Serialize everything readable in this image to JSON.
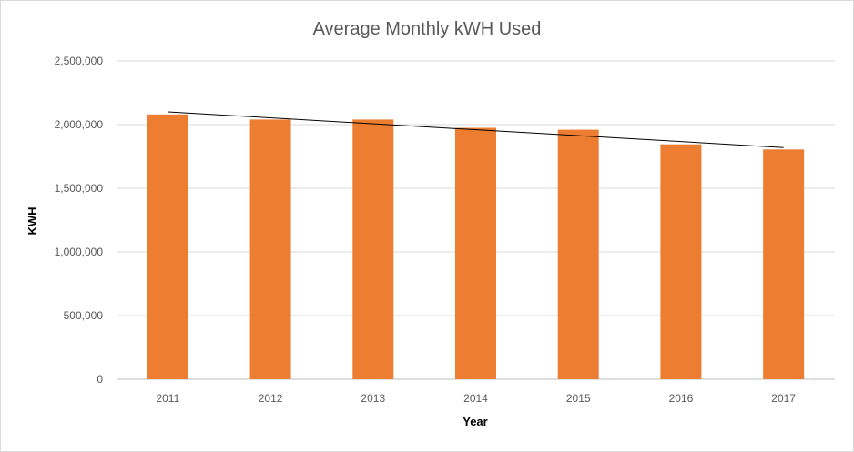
{
  "chart_data": {
    "type": "bar",
    "title": "Average Monthly kWH Used",
    "xlabel": "Year",
    "ylabel": "KWH",
    "categories": [
      "2011",
      "2012",
      "2013",
      "2014",
      "2015",
      "2016",
      "2017"
    ],
    "values": [
      2080000,
      2040000,
      2040000,
      1975000,
      1960000,
      1845000,
      1805000
    ],
    "ylim": [
      0,
      2500000
    ],
    "yticks": [
      0,
      500000,
      1000000,
      1500000,
      2000000,
      2500000
    ],
    "ytick_labels": [
      "0",
      "500,000",
      "1,000,000",
      "1,500,000",
      "2,000,000",
      "2,500,000"
    ],
    "trendline": {
      "type": "linear",
      "start": 2100000,
      "end": 1820000
    },
    "grid": true,
    "legend": "none",
    "colors": {
      "bar": "#ED7D31",
      "trendline": "#000000",
      "grid": "#d9d9d9"
    }
  }
}
